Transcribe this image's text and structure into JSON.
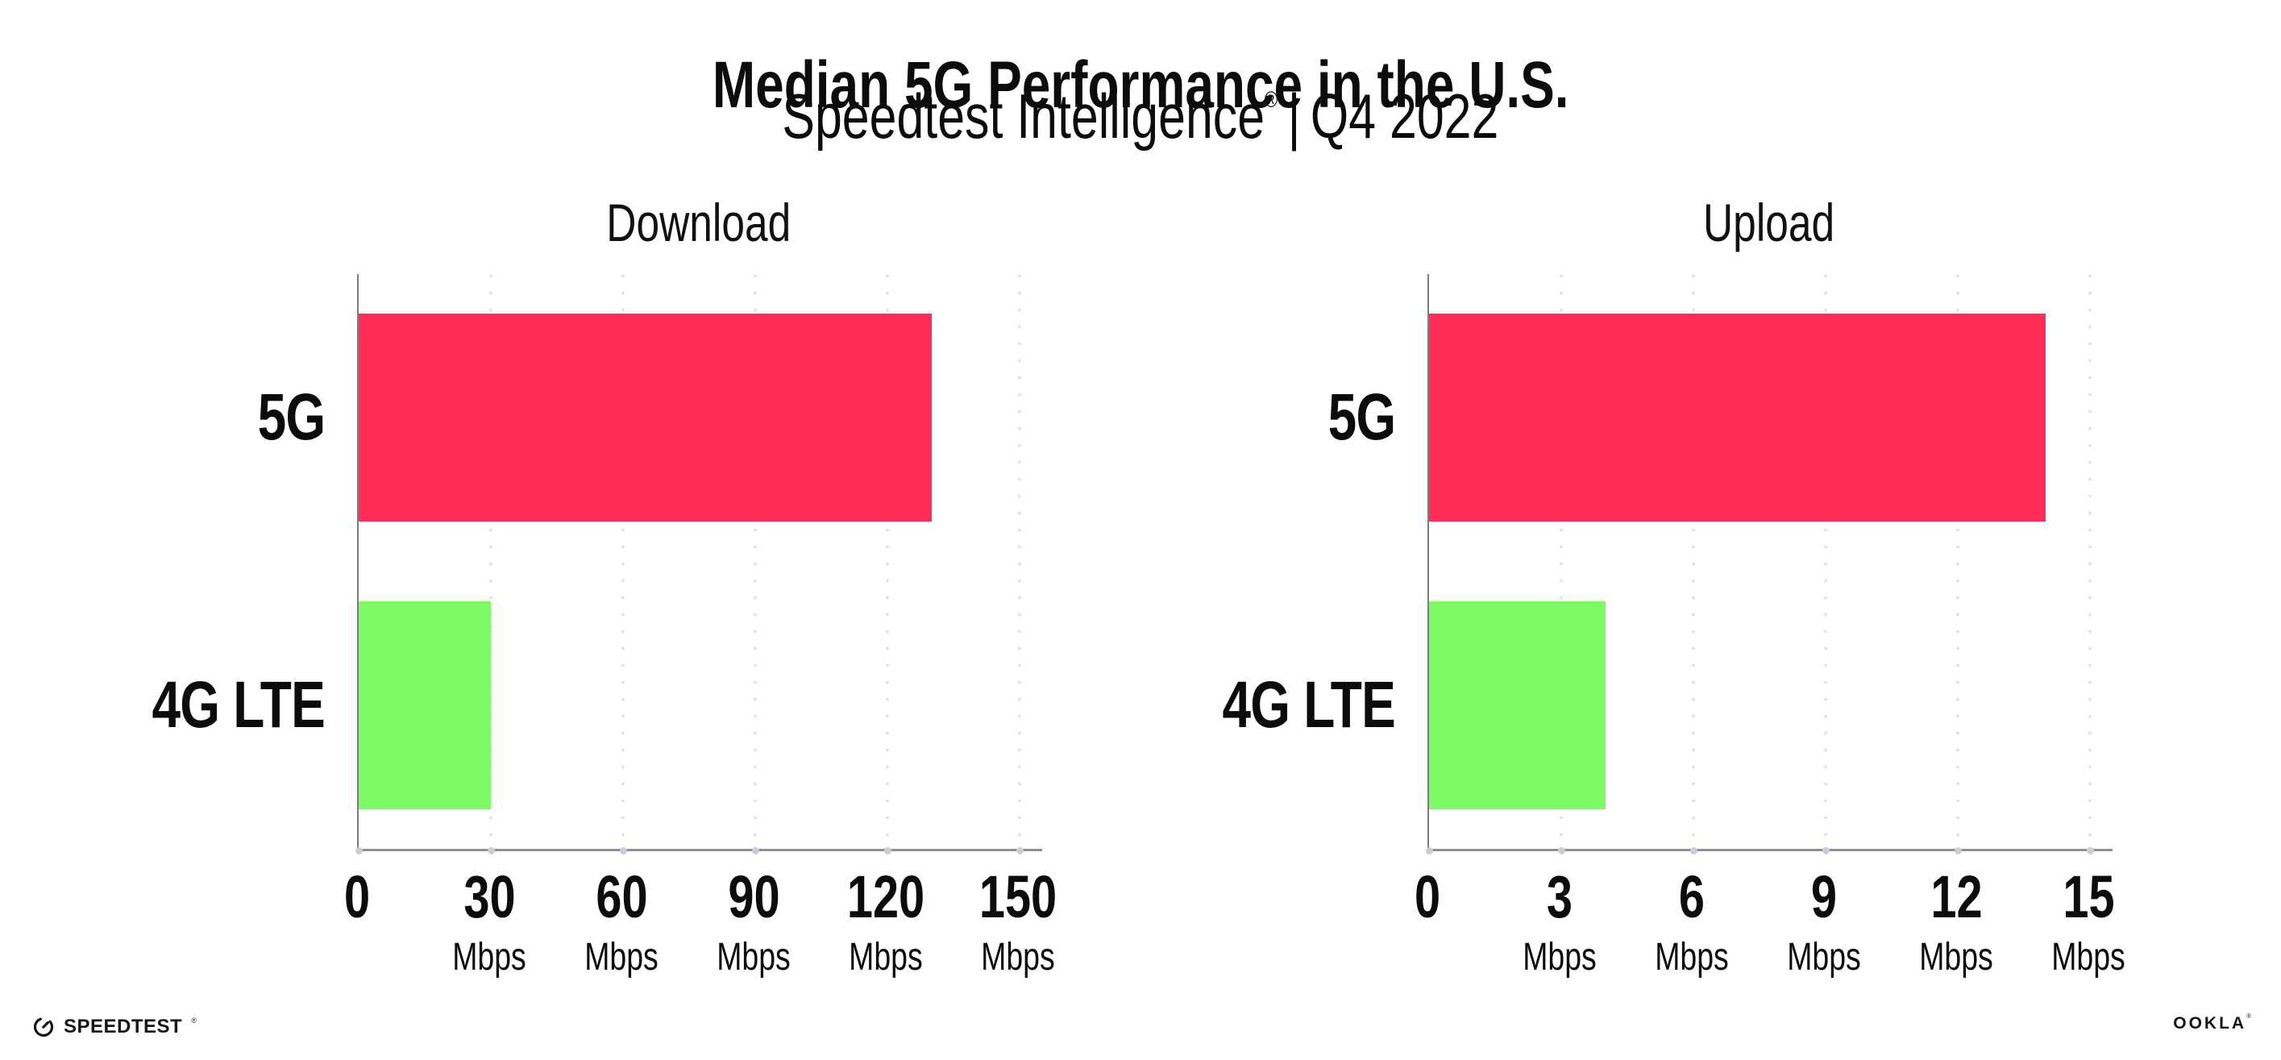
{
  "header": {
    "title": "Median 5G Performance in the U.S.",
    "subtitle_brand": "Speedtest Intelligence",
    "subtitle_reg": "®",
    "subtitle_separator": "|",
    "subtitle_period": "Q4 2022"
  },
  "chart_data": [
    {
      "type": "bar",
      "orientation": "horizontal",
      "title": "Download",
      "categories": [
        "5G",
        "4G LTE"
      ],
      "values": [
        130,
        30
      ],
      "unit": "Mbps",
      "xlim": [
        0,
        150
      ],
      "xticks": [
        0,
        30,
        60,
        90,
        120,
        150
      ],
      "tick_unit_label": "Mbps",
      "bar_colors": [
        "#ff2d58",
        "#7dfa64"
      ],
      "grid": "dotted-vertical",
      "legend": "none"
    },
    {
      "type": "bar",
      "orientation": "horizontal",
      "title": "Upload",
      "categories": [
        "5G",
        "4G LTE"
      ],
      "values": [
        14,
        4
      ],
      "unit": "Mbps",
      "xlim": [
        0,
        15
      ],
      "xticks": [
        0,
        3,
        6,
        9,
        12,
        15
      ],
      "tick_unit_label": "Mbps",
      "bar_colors": [
        "#ff2d58",
        "#7dfa64"
      ],
      "grid": "dotted-vertical",
      "legend": "none"
    }
  ],
  "footer": {
    "speedtest_icon": "speedometer-gauge",
    "speedtest_logo_text": "SPEEDTEST",
    "speedtest_reg": "®",
    "ookla_logo_text": "OOKLA",
    "ookla_reg": "®"
  },
  "colors": {
    "bar_5g": "#ff2d58",
    "bar_4g_lte": "#7dfa64",
    "axis_line": "#8f8f8f",
    "grid_dot": "#dfe0ea",
    "axis_tick_dot": "#c9cbdb",
    "text": "#0c0c0c",
    "background": "#ffffff"
  }
}
